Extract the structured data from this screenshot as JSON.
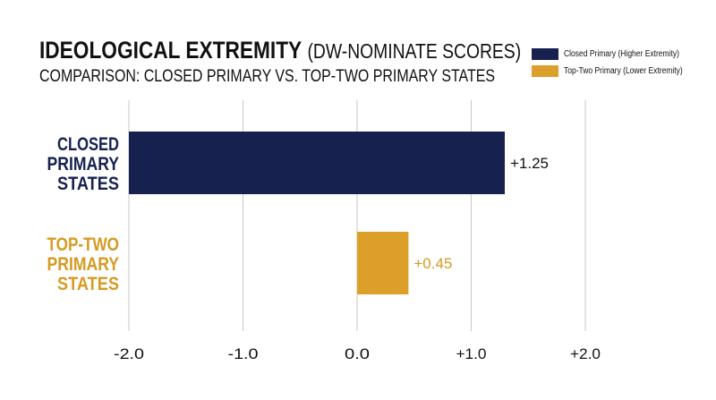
{
  "chart_data": {
    "type": "bar",
    "orientation": "horizontal",
    "title_bold": "IDEOLOGICAL EXTREMITY",
    "title_light": "(DW-NOMINATE SCORES)",
    "subtitle": "COMPARISON: CLOSED PRIMARY VS. TOP-TWO PRIMARY STATES",
    "categories": [
      [
        "CLOSED",
        "PRIMARY",
        "STATES"
      ],
      [
        "TOP-TWO",
        "PRIMARY",
        "STATES"
      ]
    ],
    "values": [
      1.25,
      0.45
    ],
    "value_labels": [
      "+1.25",
      "+0.45"
    ],
    "colors": [
      "#16214f",
      "#dca02a"
    ],
    "xlim": [
      -2.0,
      2.0
    ],
    "xticks": [
      -2.0,
      -1.0,
      0.0,
      1.0,
      2.0
    ],
    "xtick_labels": [
      "-2.0",
      "-1.0",
      "0.0",
      "+1.0",
      "+2.0"
    ],
    "grid": "vertical",
    "legend_position": "top-right",
    "legend": [
      {
        "label": "Closed Primary (Higher Extremity)",
        "color": "#16214f"
      },
      {
        "label": "Top-Two Primary (Lower Extremity)",
        "color": "#dca02a"
      }
    ]
  }
}
